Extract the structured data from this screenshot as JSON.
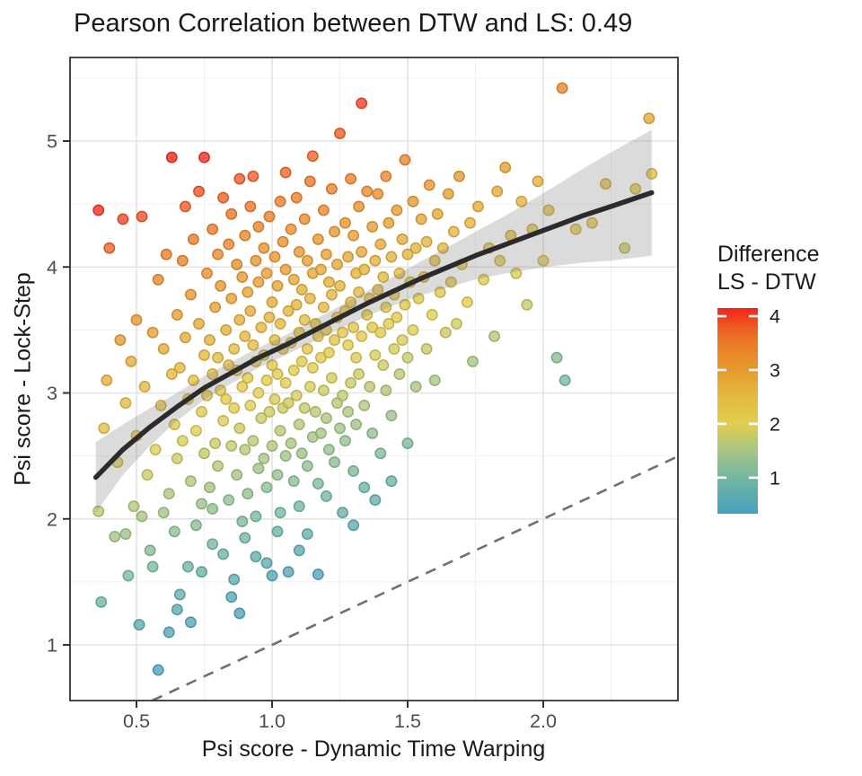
{
  "chart_data": {
    "type": "scatter",
    "title": "Pearson Correlation between DTW and LS: 0.49",
    "xlabel": "Psi score - Dynamic Time Warping",
    "ylabel": "Psi score - Lock-Step",
    "correlation": 0.49,
    "x_ticks": [
      0.5,
      1.0,
      1.5,
      2.0
    ],
    "x_tick_labels": [
      "0.5",
      "1.0",
      "1.5",
      "2.0"
    ],
    "y_ticks": [
      1,
      2,
      3,
      4,
      5
    ],
    "y_tick_labels": [
      "1",
      "2",
      "3",
      "4",
      "5"
    ],
    "xlim": [
      0.245,
      2.497
    ],
    "ylim": [
      0.56,
      5.66
    ],
    "grid": {
      "major": true,
      "minor": true
    },
    "identity_line": {
      "equation": "y = x",
      "style": "dashed",
      "x_start": 0.558,
      "x_end": 2.497
    },
    "smooth": {
      "x": [
        0.35,
        0.45,
        0.55,
        0.65,
        0.75,
        0.85,
        0.95,
        1.05,
        1.15,
        1.25,
        1.35,
        1.45,
        1.55,
        1.65,
        1.75,
        1.85,
        1.95,
        2.05,
        2.15,
        2.25,
        2.4
      ],
      "y": [
        2.33,
        2.55,
        2.73,
        2.89,
        3.04,
        3.16,
        3.28,
        3.38,
        3.49,
        3.6,
        3.71,
        3.81,
        3.91,
        4.0,
        4.09,
        4.17,
        4.25,
        4.33,
        4.41,
        4.48,
        4.59
      ],
      "ci_halfwidth": [
        0.28,
        0.2,
        0.15,
        0.11,
        0.095,
        0.085,
        0.08,
        0.08,
        0.085,
        0.09,
        0.1,
        0.115,
        0.135,
        0.16,
        0.19,
        0.225,
        0.27,
        0.32,
        0.375,
        0.43,
        0.5
      ]
    },
    "color_scale": {
      "legend_title_lines": [
        "Difference",
        "LS - DTW"
      ],
      "tick_values": [
        1,
        2,
        3,
        4
      ],
      "tick_labels": [
        "1",
        "2",
        "3",
        "4"
      ],
      "domain": [
        0.33,
        4.15
      ],
      "maps": "y - x",
      "stops": [
        [
          0.33,
          "#4BA0BD"
        ],
        [
          0.6,
          "#57A9B2"
        ],
        [
          1.0,
          "#72B8A0"
        ],
        [
          1.5,
          "#A6C583"
        ],
        [
          2.0,
          "#E0CE50"
        ],
        [
          2.5,
          "#E4BA40"
        ],
        [
          3.0,
          "#E69A2D"
        ],
        [
          3.5,
          "#EC7A27"
        ],
        [
          3.8,
          "#EE5B22"
        ],
        [
          4.0,
          "#F23A1E"
        ],
        [
          4.15,
          "#F5231B"
        ]
      ]
    },
    "points": [
      [
        0.36,
        2.06
      ],
      [
        0.36,
        4.45
      ],
      [
        0.37,
        1.34
      ],
      [
        0.38,
        2.72
      ],
      [
        0.39,
        3.1
      ],
      [
        0.4,
        4.15
      ],
      [
        0.42,
        1.86
      ],
      [
        0.43,
        2.45
      ],
      [
        0.44,
        3.42
      ],
      [
        0.45,
        4.38
      ],
      [
        0.46,
        2.92
      ],
      [
        0.46,
        1.88
      ],
      [
        0.47,
        1.55
      ],
      [
        0.48,
        3.25
      ],
      [
        0.49,
        2.1
      ],
      [
        0.5,
        3.58
      ],
      [
        0.5,
        2.66
      ],
      [
        0.51,
        1.16
      ],
      [
        0.52,
        4.4
      ],
      [
        0.52,
        2.02
      ],
      [
        0.53,
        3.05
      ],
      [
        0.54,
        2.35
      ],
      [
        0.55,
        1.75
      ],
      [
        0.56,
        3.48
      ],
      [
        0.56,
        1.62
      ],
      [
        0.57,
        2.55
      ],
      [
        0.58,
        0.8
      ],
      [
        0.58,
        3.9
      ],
      [
        0.59,
        2.9
      ],
      [
        0.6,
        3.35
      ],
      [
        0.6,
        2.05
      ],
      [
        0.61,
        4.1
      ],
      [
        0.62,
        2.2
      ],
      [
        0.62,
        1.1
      ],
      [
        0.63,
        4.87
      ],
      [
        0.63,
        3.15
      ],
      [
        0.64,
        2.75
      ],
      [
        0.64,
        1.9
      ],
      [
        0.65,
        3.62
      ],
      [
        0.65,
        2.48
      ],
      [
        0.65,
        1.28
      ],
      [
        0.66,
        3.2
      ],
      [
        0.66,
        1.4
      ],
      [
        0.67,
        4.05
      ],
      [
        0.67,
        2.62
      ],
      [
        0.68,
        4.48
      ],
      [
        0.68,
        3.44
      ],
      [
        0.69,
        2.95
      ],
      [
        0.69,
        1.62
      ],
      [
        0.7,
        3.78
      ],
      [
        0.7,
        2.3
      ],
      [
        0.7,
        1.18
      ],
      [
        0.71,
        4.22
      ],
      [
        0.71,
        3.1
      ],
      [
        0.72,
        2.7
      ],
      [
        0.72,
        1.95
      ],
      [
        0.73,
        3.55
      ],
      [
        0.73,
        4.6
      ],
      [
        0.74,
        2.85
      ],
      [
        0.74,
        2.12
      ],
      [
        0.74,
        1.58
      ],
      [
        0.75,
        4.87
      ],
      [
        0.75,
        3.3
      ],
      [
        0.75,
        2.52
      ],
      [
        0.76,
        3.95
      ],
      [
        0.76,
        2.98
      ],
      [
        0.77,
        3.42
      ],
      [
        0.77,
        2.25
      ],
      [
        0.78,
        4.3
      ],
      [
        0.78,
        3.15
      ],
      [
        0.78,
        1.8
      ],
      [
        0.78,
        2.08
      ],
      [
        0.79,
        3.68
      ],
      [
        0.79,
        2.6
      ],
      [
        0.8,
        4.1
      ],
      [
        0.8,
        3.28
      ],
      [
        0.8,
        2.42
      ],
      [
        0.81,
        3.85
      ],
      [
        0.81,
        3.02
      ],
      [
        0.82,
        4.55
      ],
      [
        0.82,
        2.78
      ],
      [
        0.82,
        1.72
      ],
      [
        0.83,
        3.5
      ],
      [
        0.83,
        2.95
      ],
      [
        0.84,
        4.18
      ],
      [
        0.84,
        3.22
      ],
      [
        0.84,
        2.15
      ],
      [
        0.85,
        3.75
      ],
      [
        0.85,
        2.58
      ],
      [
        0.85,
        4.42
      ],
      [
        0.85,
        1.38
      ],
      [
        0.86,
        3.35
      ],
      [
        0.86,
        2.88
      ],
      [
        0.86,
        1.52
      ],
      [
        0.87,
        4.02
      ],
      [
        0.87,
        3.18
      ],
      [
        0.87,
        2.35
      ],
      [
        0.88,
        4.7
      ],
      [
        0.88,
        3.58
      ],
      [
        0.88,
        2.72
      ],
      [
        0.88,
        1.25
      ],
      [
        0.89,
        3.92
      ],
      [
        0.89,
        3.05
      ],
      [
        0.89,
        1.98
      ],
      [
        0.9,
        4.25
      ],
      [
        0.9,
        3.45
      ],
      [
        0.9,
        2.55
      ],
      [
        0.9,
        1.85
      ],
      [
        0.91,
        3.8
      ],
      [
        0.91,
        3.12
      ],
      [
        0.91,
        2.2
      ],
      [
        0.92,
        4.48
      ],
      [
        0.92,
        3.65
      ],
      [
        0.92,
        2.9
      ],
      [
        0.93,
        4.72
      ],
      [
        0.93,
        3.38
      ],
      [
        0.93,
        2.62
      ],
      [
        0.94,
        4.05
      ],
      [
        0.94,
        3.25
      ],
      [
        0.94,
        2.02
      ],
      [
        0.94,
        1.7
      ],
      [
        0.95,
        3.88
      ],
      [
        0.95,
        3.0
      ],
      [
        0.95,
        2.4
      ],
      [
        0.95,
        4.32
      ],
      [
        0.96,
        3.52
      ],
      [
        0.96,
        2.8
      ],
      [
        0.97,
        4.15
      ],
      [
        0.97,
        3.3
      ],
      [
        0.97,
        2.48
      ],
      [
        0.98,
        3.95
      ],
      [
        0.98,
        3.1
      ],
      [
        0.98,
        2.25
      ],
      [
        0.98,
        1.65
      ],
      [
        0.99,
        4.4
      ],
      [
        0.99,
        3.6
      ],
      [
        0.99,
        2.85
      ],
      [
        1.0,
        3.72
      ],
      [
        1.0,
        3.22
      ],
      [
        1.0,
        2.58
      ],
      [
        1.0,
        1.55
      ],
      [
        1.01,
        4.08
      ],
      [
        1.01,
        3.42
      ],
      [
        1.01,
        2.95
      ],
      [
        1.02,
        3.85
      ],
      [
        1.02,
        3.15
      ],
      [
        1.02,
        2.35
      ],
      [
        1.02,
        1.9
      ],
      [
        1.03,
        4.52
      ],
      [
        1.03,
        3.55
      ],
      [
        1.03,
        2.7
      ],
      [
        1.03,
        2.05
      ],
      [
        1.04,
        4.2
      ],
      [
        1.04,
        3.35
      ],
      [
        1.04,
        2.88
      ],
      [
        1.05,
        3.98
      ],
      [
        1.05,
        3.08
      ],
      [
        1.05,
        2.5
      ],
      [
        1.05,
        4.75
      ],
      [
        1.06,
        3.65
      ],
      [
        1.06,
        2.92
      ],
      [
        1.06,
        1.58
      ],
      [
        1.07,
        4.3
      ],
      [
        1.07,
        3.4
      ],
      [
        1.07,
        2.6
      ],
      [
        1.08,
        3.9
      ],
      [
        1.08,
        3.18
      ],
      [
        1.08,
        2.3
      ],
      [
        1.09,
        4.55
      ],
      [
        1.09,
        3.7
      ],
      [
        1.09,
        2.98
      ],
      [
        1.1,
        4.12
      ],
      [
        1.1,
        3.48
      ],
      [
        1.1,
        2.75
      ],
      [
        1.1,
        2.1
      ],
      [
        1.1,
        1.75
      ],
      [
        1.11,
        3.82
      ],
      [
        1.11,
        3.25
      ],
      [
        1.11,
        2.52
      ],
      [
        1.12,
        4.38
      ],
      [
        1.12,
        3.58
      ],
      [
        1.12,
        2.88
      ],
      [
        1.13,
        4.05
      ],
      [
        1.13,
        3.35
      ],
      [
        1.13,
        2.42
      ],
      [
        1.13,
        1.88
      ],
      [
        1.14,
        4.68
      ],
      [
        1.14,
        3.75
      ],
      [
        1.14,
        3.05
      ],
      [
        1.15,
        3.95
      ],
      [
        1.15,
        3.2
      ],
      [
        1.15,
        2.65
      ],
      [
        1.15,
        4.88
      ],
      [
        1.16,
        3.55
      ],
      [
        1.16,
        2.85
      ],
      [
        1.17,
        4.22
      ],
      [
        1.17,
        3.45
      ],
      [
        1.17,
        2.28
      ],
      [
        1.17,
        1.56
      ],
      [
        1.18,
        3.98
      ],
      [
        1.18,
        3.28
      ],
      [
        1.18,
        2.68
      ],
      [
        1.19,
        4.45
      ],
      [
        1.19,
        3.68
      ],
      [
        1.19,
        3.02
      ],
      [
        1.2,
        4.1
      ],
      [
        1.2,
        3.5
      ],
      [
        1.2,
        2.8
      ],
      [
        1.2,
        2.18
      ],
      [
        1.21,
        3.88
      ],
      [
        1.21,
        3.32
      ],
      [
        1.21,
        2.55
      ],
      [
        1.22,
        4.62
      ],
      [
        1.22,
        3.78
      ],
      [
        1.22,
        3.12
      ],
      [
        1.23,
        4.28
      ],
      [
        1.23,
        3.42
      ],
      [
        1.23,
        2.45
      ],
      [
        1.24,
        4.02
      ],
      [
        1.24,
        3.6
      ],
      [
        1.24,
        2.92
      ],
      [
        1.25,
        5.06
      ],
      [
        1.25,
        3.85
      ],
      [
        1.25,
        2.72
      ],
      [
        1.26,
        3.48
      ],
      [
        1.26,
        2.98
      ],
      [
        1.26,
        2.05
      ],
      [
        1.27,
        4.35
      ],
      [
        1.27,
        3.65
      ],
      [
        1.27,
        2.62
      ],
      [
        1.28,
        4.08
      ],
      [
        1.28,
        3.38
      ],
      [
        1.28,
        2.85
      ],
      [
        1.29,
        4.7
      ],
      [
        1.29,
        3.72
      ],
      [
        1.29,
        3.08
      ],
      [
        1.3,
        4.25
      ],
      [
        1.3,
        3.52
      ],
      [
        1.3,
        2.38
      ],
      [
        1.3,
        1.95
      ],
      [
        1.31,
        3.95
      ],
      [
        1.31,
        3.28
      ],
      [
        1.31,
        2.75
      ],
      [
        1.32,
        4.48
      ],
      [
        1.32,
        3.8
      ],
      [
        1.32,
        3.15
      ],
      [
        1.33,
        5.3
      ],
      [
        1.33,
        4.12
      ],
      [
        1.33,
        3.45
      ],
      [
        1.34,
        3.98
      ],
      [
        1.34,
        2.9
      ],
      [
        1.34,
        2.25
      ],
      [
        1.35,
        4.6
      ],
      [
        1.35,
        3.62
      ],
      [
        1.36,
        3.75
      ],
      [
        1.36,
        3.05
      ],
      [
        1.37,
        4.32
      ],
      [
        1.37,
        3.52
      ],
      [
        1.37,
        2.68
      ],
      [
        1.38,
        4.05
      ],
      [
        1.38,
        3.3
      ],
      [
        1.38,
        2.15
      ],
      [
        1.39,
        4.58
      ],
      [
        1.39,
        3.82
      ],
      [
        1.4,
        4.18
      ],
      [
        1.4,
        3.48
      ],
      [
        1.4,
        2.52
      ],
      [
        1.41,
        3.92
      ],
      [
        1.41,
        3.22
      ],
      [
        1.42,
        4.72
      ],
      [
        1.42,
        3.68
      ],
      [
        1.42,
        3.02
      ],
      [
        1.43,
        4.35
      ],
      [
        1.43,
        3.55
      ],
      [
        1.44,
        4.08
      ],
      [
        1.44,
        2.3
      ],
      [
        1.44,
        2.82
      ],
      [
        1.45,
        3.78
      ],
      [
        1.45,
        3.35
      ],
      [
        1.46,
        4.45
      ],
      [
        1.46,
        3.6
      ],
      [
        1.47,
        3.95
      ],
      [
        1.47,
        3.15
      ],
      [
        1.48,
        4.22
      ],
      [
        1.48,
        3.42
      ],
      [
        1.49,
        4.85
      ],
      [
        1.49,
        3.7
      ],
      [
        1.5,
        4.1
      ],
      [
        1.5,
        3.28
      ],
      [
        1.5,
        2.6
      ],
      [
        1.51,
        3.88
      ],
      [
        1.52,
        4.52
      ],
      [
        1.52,
        3.5
      ],
      [
        1.53,
        4.15
      ],
      [
        1.53,
        3.05
      ],
      [
        1.54,
        3.75
      ],
      [
        1.55,
        4.38
      ],
      [
        1.56,
        3.92
      ],
      [
        1.57,
        4.2
      ],
      [
        1.57,
        3.35
      ],
      [
        1.58,
        4.65
      ],
      [
        1.59,
        3.62
      ],
      [
        1.6,
        4.05
      ],
      [
        1.6,
        3.1
      ],
      [
        1.61,
        4.42
      ],
      [
        1.62,
        3.8
      ],
      [
        1.63,
        4.15
      ],
      [
        1.64,
        3.48
      ],
      [
        1.65,
        4.58
      ],
      [
        1.66,
        3.88
      ],
      [
        1.67,
        4.28
      ],
      [
        1.68,
        3.55
      ],
      [
        1.69,
        4.72
      ],
      [
        1.7,
        4.02
      ],
      [
        1.72,
        3.72
      ],
      [
        1.73,
        4.35
      ],
      [
        1.74,
        3.25
      ],
      [
        1.76,
        4.48
      ],
      [
        1.78,
        3.9
      ],
      [
        1.8,
        4.15
      ],
      [
        1.82,
        3.45
      ],
      [
        1.83,
        4.6
      ],
      [
        1.84,
        4.05
      ],
      [
        1.86,
        4.79
      ],
      [
        1.88,
        4.25
      ],
      [
        1.9,
        3.95
      ],
      [
        1.92,
        4.52
      ],
      [
        1.94,
        3.7
      ],
      [
        1.96,
        4.3
      ],
      [
        1.98,
        4.68
      ],
      [
        2.0,
        4.05
      ],
      [
        2.02,
        4.45
      ],
      [
        2.05,
        3.28
      ],
      [
        2.07,
        5.42
      ],
      [
        2.08,
        3.1
      ],
      [
        2.12,
        4.3
      ],
      [
        2.18,
        4.35
      ],
      [
        2.23,
        4.66
      ],
      [
        2.3,
        4.15
      ],
      [
        2.34,
        4.62
      ],
      [
        2.39,
        5.18
      ],
      [
        2.4,
        4.74
      ]
    ]
  },
  "colors": {
    "curve": "#2B2B2B",
    "band": "#7F7F7F",
    "identity_line": "#707070",
    "grid_major": "#E3E3E3",
    "grid_minor": "#F0F0F0",
    "panel_border": "#333333",
    "tick_mark": "#333333",
    "tick_text": "#4D4D4D",
    "title_text": "#1A1A1A",
    "panel_background": "#FFFFFF"
  }
}
